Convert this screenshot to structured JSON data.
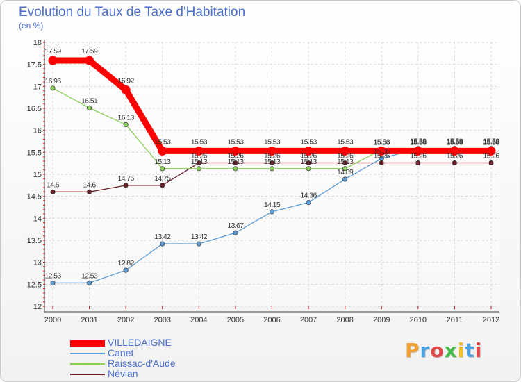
{
  "header": {
    "title": "Evolution du Taux de Taxe d'Habitation",
    "subtitle": "(en %)"
  },
  "brand": {
    "letters": [
      "P",
      "r",
      "o",
      "x",
      "i",
      "t",
      "i"
    ],
    "colors": [
      "#f0a030",
      "#4aa0e0",
      "#e04848",
      "#44b848",
      "#f0c020",
      "#4aa0e0",
      "#e04848"
    ]
  },
  "chart_data": {
    "type": "line",
    "title": "Evolution du Taux de Taxe d'Habitation",
    "ylabel": "(en %)",
    "xlabel": "",
    "x": [
      "2000",
      "2001",
      "2002",
      "2003",
      "2004",
      "2005",
      "2006",
      "2007",
      "2008",
      "2009",
      "2010",
      "2011",
      "2012"
    ],
    "ylim": [
      12,
      18
    ],
    "yticks": [
      "12",
      "12.5",
      "13",
      "13.5",
      "14",
      "14.5",
      "15",
      "15.5",
      "16",
      "16.5",
      "17",
      "17.5",
      "18"
    ],
    "grid": true,
    "legend_position": "bottom-left",
    "series": [
      {
        "name": "Névian",
        "color": "#6b1f28",
        "values": [
          14.6,
          14.6,
          14.75,
          14.75,
          15.26,
          15.26,
          15.26,
          15.26,
          15.26,
          15.26,
          15.26,
          15.26,
          15.26
        ],
        "labels": [
          "14.6",
          "14.6",
          "14.75",
          "14.75",
          "15.26",
          "15.26",
          "15.26",
          "15.26",
          "15.26",
          "15.26",
          "15.26",
          "15.26",
          "15.26"
        ]
      },
      {
        "name": "Canet",
        "color": "#5b9bd5",
        "values": [
          12.53,
          12.53,
          12.82,
          13.42,
          13.42,
          13.67,
          14.15,
          14.36,
          14.89,
          15.36,
          15.59,
          15.59,
          15.59
        ],
        "labels": [
          "12.53",
          "12.53",
          "12.82",
          "13.42",
          "13.42",
          "13.67",
          "14.15",
          "14.36",
          "14.89",
          "15.36",
          "15.59",
          "15.59",
          "15.59"
        ]
      },
      {
        "name": "Raissac-d'Aude",
        "color": "#88d058",
        "values": [
          16.96,
          16.51,
          16.13,
          15.13,
          15.13,
          15.13,
          15.13,
          15.13,
          15.13,
          15.56,
          15.56,
          15.56,
          15.56
        ],
        "labels": [
          "16.96",
          "16.51",
          "16.13",
          "15.13",
          "15.13",
          "15.13",
          "15.13",
          "15.13",
          "15.13",
          "15.56",
          "15.56",
          "15.56",
          "15.56"
        ]
      },
      {
        "name": "VILLEDAIGNE",
        "color": "#ff0000",
        "values": [
          17.59,
          17.59,
          16.92,
          15.53,
          15.53,
          15.53,
          15.53,
          15.53,
          15.53,
          15.53,
          15.53,
          15.53,
          15.53
        ],
        "labels": [
          "17.59",
          "17.59",
          "16.92",
          "15.53",
          "15.53",
          "15.53",
          "15.53",
          "15.53",
          "15.53",
          "15.53",
          "15.53",
          "15.53",
          "15.53"
        ]
      }
    ],
    "legend_order": [
      "VILLEDAIGNE",
      "Canet",
      "Raissac-d'Aude",
      "Névian"
    ]
  }
}
